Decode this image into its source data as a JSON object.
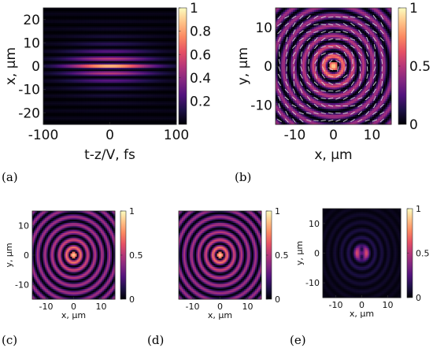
{
  "colormap": [
    "#000004",
    "#1d1147",
    "#51127c",
    "#822681",
    "#b63679",
    "#e65164",
    "#fb8861",
    "#fec287",
    "#fcfdbf"
  ],
  "panel_labels": [
    "(a)",
    "(b)",
    "(c)",
    "(d)",
    "(e)"
  ],
  "chart_data": [
    {
      "type": "heatmap",
      "panel": "a",
      "xlabel": "t-z/V, fs",
      "ylabel": "x, μm",
      "xlim": [
        -100,
        100
      ],
      "ylim": [
        -25,
        25
      ],
      "xticks": [
        -100,
        0,
        100
      ],
      "yticks": [
        -20,
        -10,
        0,
        10,
        20
      ],
      "clim": [
        0,
        1
      ],
      "colorbar_ticks": [
        0.2,
        0.4,
        0.6,
        0.8,
        1
      ],
      "pattern": "horizontal fringes, bright peak at x=0, intensity decaying with |x| and with |t|"
    },
    {
      "type": "heatmap",
      "panel": "b",
      "xlabel": "x, μm",
      "ylabel": "y, μm",
      "xlim": [
        -15,
        15
      ],
      "ylim": [
        -15,
        15
      ],
      "xticks": [
        -10,
        0,
        10
      ],
      "yticks": [
        -10,
        0,
        10
      ],
      "clim": [
        0,
        1
      ],
      "colorbar_ticks": [
        0,
        0.5,
        1
      ],
      "pattern": "concentric rings with bright central spot and overlaid polarization arrows"
    },
    {
      "type": "heatmap",
      "panel": "c",
      "xlabel": "x, μm",
      "ylabel": "y, μm",
      "xlim": [
        -15,
        15
      ],
      "ylim": [
        -15,
        15
      ],
      "xticks": [
        -10,
        0,
        10
      ],
      "yticks": [
        -10,
        0,
        10
      ],
      "clim": [
        0,
        1
      ],
      "colorbar_ticks": [
        0,
        0.5,
        1
      ],
      "pattern": "concentric rings, bright central spot"
    },
    {
      "type": "heatmap",
      "panel": "d",
      "xlabel": "x, μm",
      "ylabel": "",
      "xlim": [
        -15,
        15
      ],
      "ylim": [
        -15,
        15
      ],
      "xticks": [
        -10,
        0,
        10
      ],
      "yticks": [],
      "clim": [
        0,
        1
      ],
      "colorbar_ticks": [
        0,
        0.5,
        1
      ],
      "pattern": "concentric rings, bright central spot"
    },
    {
      "type": "heatmap",
      "panel": "e",
      "xlabel": "x, μm",
      "ylabel": "y, μm",
      "xlim": [
        -15,
        15
      ],
      "ylim": [
        -15,
        15
      ],
      "xticks": [
        -10,
        0,
        10
      ],
      "yticks": [
        -10,
        0,
        10
      ],
      "clim": [
        0,
        1
      ],
      "colorbar_ticks": [
        0,
        0.5,
        1
      ],
      "pattern": "weak dim rings, two-lobed center"
    }
  ]
}
